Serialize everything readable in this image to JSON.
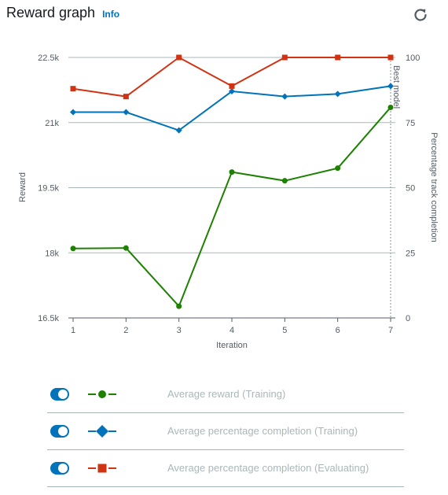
{
  "header": {
    "title": "Reward graph",
    "info_link": "Info"
  },
  "icons": {
    "refresh": "refresh-icon",
    "toggle": "toggle-switch-on"
  },
  "colors": {
    "reward": "#1d8102",
    "training_completion": "#0073bb",
    "evaluating_completion": "#d13212",
    "toggle_on": "#0073bb"
  },
  "chart_data": {
    "type": "line",
    "x": [
      1,
      2,
      3,
      4,
      5,
      6,
      7
    ],
    "xlabel": "Iteration",
    "ylabel_left": "Reward",
    "ylabel_right": "Percentage track completion",
    "ylim_left": [
      16500,
      22500
    ],
    "ylim_right": [
      0,
      100
    ],
    "yticks_left": [
      "16.5k",
      "18k",
      "19.5k",
      "21k",
      "22.5k"
    ],
    "yticks_right": [
      "0",
      "25",
      "50",
      "75",
      "100"
    ],
    "grid": "horizontal",
    "annotation": "Best model",
    "best_model_iteration": 7,
    "series": [
      {
        "name": "Average reward (Training)",
        "axis": "left",
        "marker": "circle",
        "color": "#1d8102",
        "values": [
          18100,
          18110,
          16770,
          19860,
          19660,
          19950,
          21350
        ]
      },
      {
        "name": "Average percentage completion (Training)",
        "axis": "right",
        "marker": "diamond",
        "color": "#0073bb",
        "values": [
          79,
          79,
          72,
          87,
          85,
          86,
          89
        ]
      },
      {
        "name": "Average percentage completion (Evaluating)",
        "axis": "right",
        "marker": "square",
        "color": "#d13212",
        "values": [
          88,
          85,
          100,
          89,
          100,
          100,
          100
        ]
      }
    ]
  }
}
